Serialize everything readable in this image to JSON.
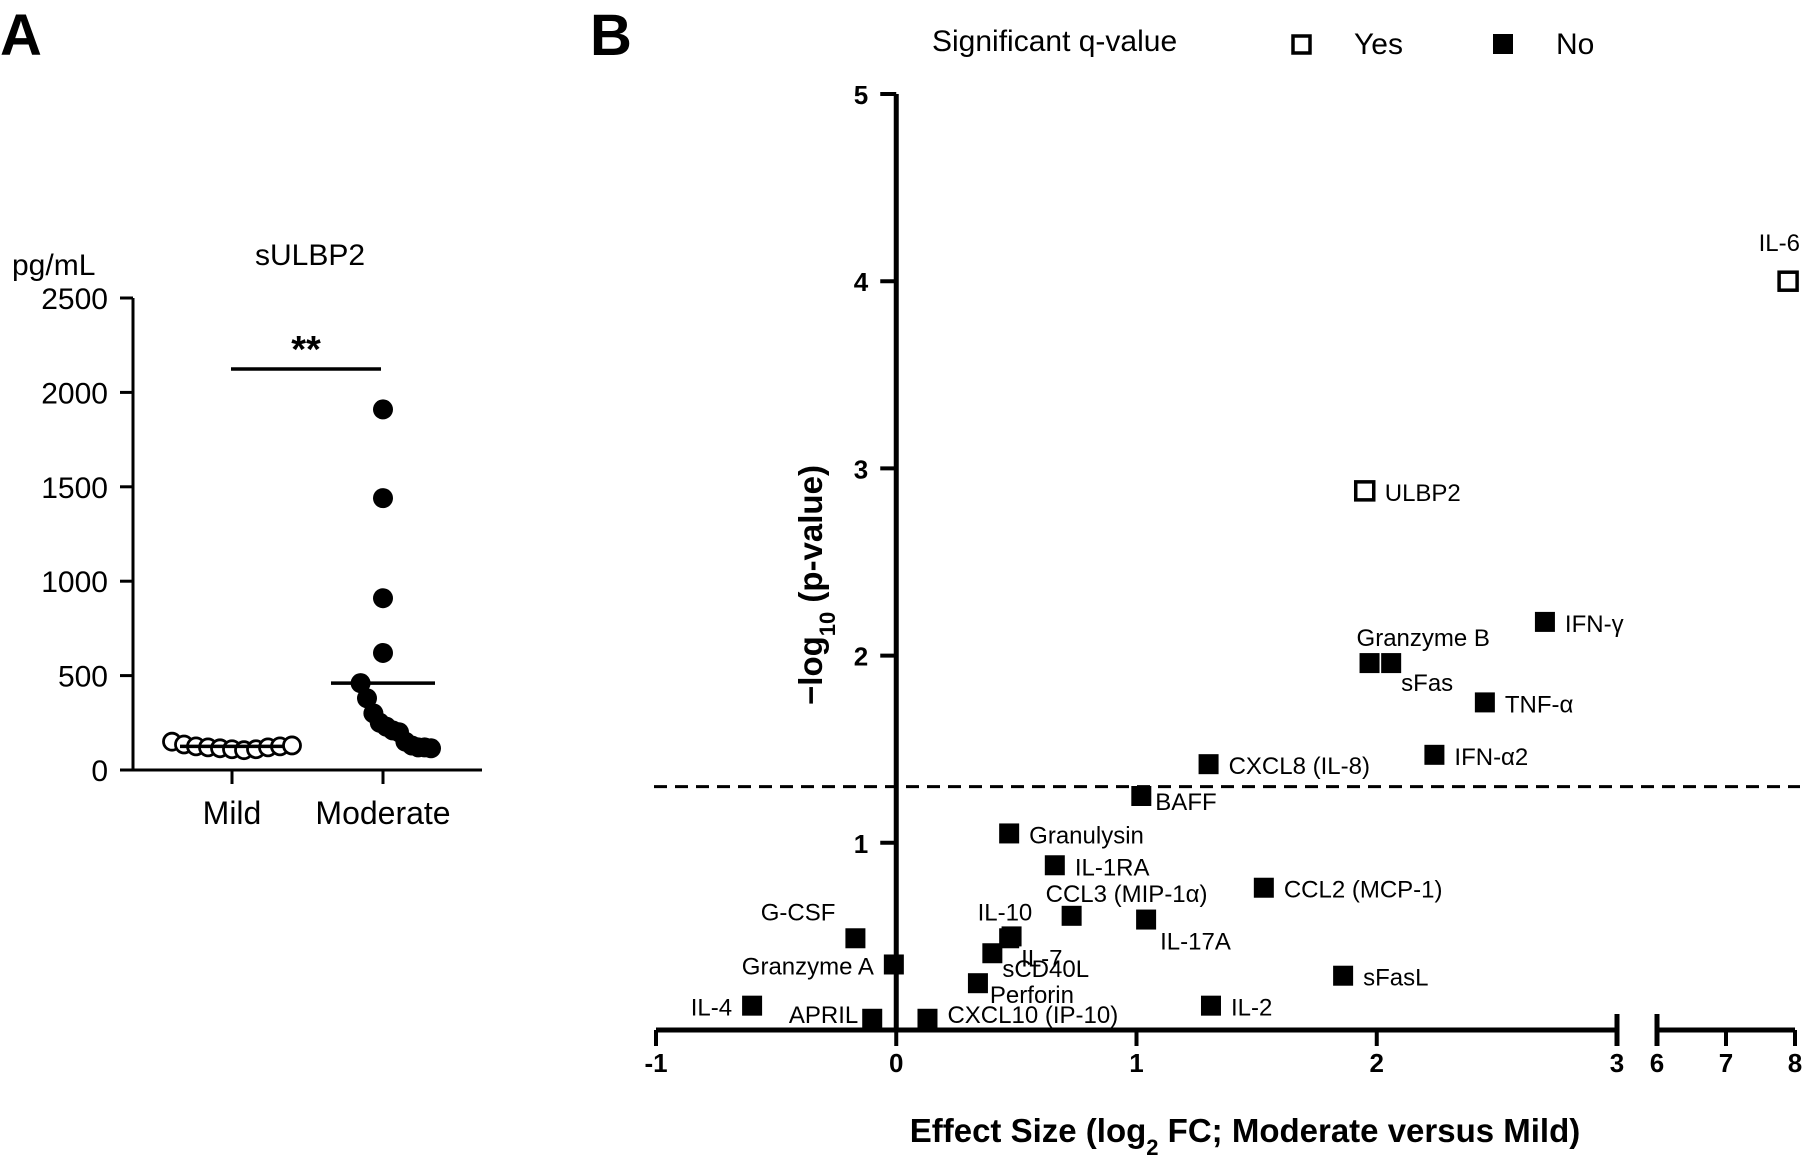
{
  "panels": {
    "a_label": "A",
    "b_label": "B"
  },
  "chart_data": [
    {
      "type": "scatter",
      "title": "sULBP2",
      "ylabel": "pg/mL",
      "xlabel": "",
      "categories": [
        "Mild",
        "Moderate"
      ],
      "ylim": [
        0,
        2500
      ],
      "yticks": [
        "0",
        "500",
        "1000",
        "1500",
        "2000",
        "2500"
      ],
      "series": [
        {
          "name": "Mild",
          "marker": "open-circle",
          "values": [
            150,
            135,
            125,
            120,
            115,
            110,
            105,
            110,
            120,
            125,
            130
          ]
        },
        {
          "name": "Moderate",
          "marker": "filled-circle",
          "values": [
            1910,
            1440,
            910,
            620,
            460,
            380,
            300,
            250,
            230,
            210,
            200,
            150,
            130,
            120,
            120,
            115
          ]
        }
      ],
      "mean_values": [
        125,
        460
      ],
      "significance": "**"
    },
    {
      "type": "scatter",
      "legend": {
        "title": "Significant q-value",
        "entries": [
          {
            "label": "Yes",
            "marker": "open-square"
          },
          {
            "label": "No",
            "marker": "filled-square"
          }
        ]
      },
      "xlabel": {
        "main": "Effect Size (log",
        "sub": "2",
        "tail": " FC; Moderate versus Mild)"
      },
      "ylabel": {
        "main": "−log",
        "sub": "10",
        "tail": " (p-value)"
      },
      "xlim": [
        -1,
        8
      ],
      "x_axis_break": [
        3,
        6
      ],
      "ylim": [
        0,
        5
      ],
      "xticks": [
        "-1",
        "0",
        "1",
        "2",
        "3",
        "6",
        "7",
        "8"
      ],
      "yticks": [
        "1",
        "2",
        "3",
        "4",
        "5"
      ],
      "threshold_y": 1.3,
      "points": [
        {
          "label": "IL-6",
          "x": 7.9,
          "y": 4.0,
          "significant": true
        },
        {
          "label": "ULBP2",
          "x": 1.95,
          "y": 2.88,
          "significant": true
        },
        {
          "label": "IFN-γ",
          "x": 2.7,
          "y": 2.18,
          "significant": false
        },
        {
          "label": "Granzyme B",
          "x": 1.97,
          "y": 1.96,
          "significant": false
        },
        {
          "label": "sFas",
          "x": 2.06,
          "y": 1.96,
          "significant": false
        },
        {
          "label": "TNF-α",
          "x": 2.45,
          "y": 1.75,
          "significant": false
        },
        {
          "label": "IFN-α2",
          "x": 2.24,
          "y": 1.47,
          "significant": false
        },
        {
          "label": "CXCL8 (IL-8)",
          "x": 1.3,
          "y": 1.42,
          "significant": false
        },
        {
          "label": "BAFF",
          "x": 1.02,
          "y": 1.25,
          "significant": false
        },
        {
          "label": "Granulysin",
          "x": 0.47,
          "y": 1.05,
          "significant": false
        },
        {
          "label": "IL-1RA",
          "x": 0.66,
          "y": 0.88,
          "significant": false
        },
        {
          "label": "CCL2 (MCP-1)",
          "x": 1.53,
          "y": 0.76,
          "significant": false
        },
        {
          "label": "CCL3 (MIP-1α)",
          "x": 0.73,
          "y": 0.61,
          "significant": false
        },
        {
          "label": "IL-17A",
          "x": 1.04,
          "y": 0.59,
          "significant": false
        },
        {
          "label": "IL-10",
          "x": 0.48,
          "y": 0.5,
          "significant": false
        },
        {
          "label": "IL-7",
          "x": 0.47,
          "y": 0.49,
          "significant": false
        },
        {
          "label": "G-CSF",
          "x": -0.17,
          "y": 0.49,
          "significant": false
        },
        {
          "label": "sCD40L",
          "x": 0.4,
          "y": 0.41,
          "significant": false
        },
        {
          "label": "Granzyme A",
          "x": -0.01,
          "y": 0.35,
          "significant": false
        },
        {
          "label": "sFasL",
          "x": 1.86,
          "y": 0.29,
          "significant": false
        },
        {
          "label": "Perforin",
          "x": 0.34,
          "y": 0.25,
          "significant": false
        },
        {
          "label": "IL-4",
          "x": -0.6,
          "y": 0.13,
          "significant": false
        },
        {
          "label": "IL-2",
          "x": 1.31,
          "y": 0.13,
          "significant": false
        },
        {
          "label": "APRIL",
          "x": -0.1,
          "y": 0.06,
          "significant": false
        },
        {
          "label": "CXCL10 (IP-10)",
          "x": 0.13,
          "y": 0.06,
          "significant": false
        }
      ]
    }
  ]
}
